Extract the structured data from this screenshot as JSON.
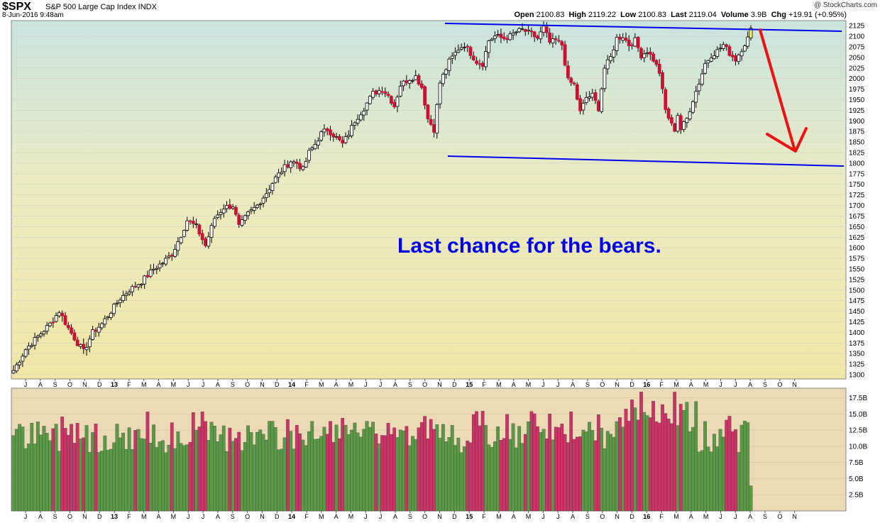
{
  "header": {
    "ticker": "$SPX",
    "description": "S&P 500 Large Cap Index INDX",
    "timestamp": "8-Jun-2016 9:48am",
    "brand": "@ StockCharts.com",
    "open_label": "Open",
    "open": "2100.83",
    "high_label": "High",
    "high": "2119.22",
    "low_label": "Low",
    "low": "2100.83",
    "last_label": "Last",
    "last": "2119.04",
    "volume_label": "Volume",
    "volume": "3.9B",
    "chg_label": "Chg",
    "chg": "+19.91 (+0.95%)"
  },
  "annotation": "Last chance for the bears.",
  "colors": {
    "up_candle": "#ffffff",
    "down_candle": "#cc1133",
    "wick": "#000000",
    "trendline": "#0000ee",
    "arrow": "#ee1111",
    "annotation_text": "#0000ee",
    "up_volume": "#5a9a46",
    "down_volume": "#cc3366",
    "volume_background": "#ecd9b6"
  },
  "chart_data": [
    {
      "type": "candlestick",
      "title": "$SPX S&P 500 Large Cap Index INDX",
      "period": "weekly",
      "x_tick_labels": [
        "J",
        "A",
        "S",
        "O",
        "N",
        "D",
        "13",
        "F",
        "M",
        "A",
        "M",
        "J",
        "J",
        "A",
        "S",
        "O",
        "N",
        "D",
        "14",
        "F",
        "M",
        "A",
        "M",
        "J",
        "J",
        "A",
        "S",
        "O",
        "N",
        "D",
        "15",
        "F",
        "M",
        "A",
        "M",
        "J",
        "J",
        "A",
        "S",
        "O",
        "N",
        "D",
        "16",
        "F",
        "M",
        "A",
        "M",
        "J",
        "J",
        "A",
        "S",
        "O",
        "N"
      ],
      "ylim": [
        1290,
        2137
      ],
      "y_ticks": [
        1300,
        1325,
        1350,
        1375,
        1400,
        1425,
        1450,
        1475,
        1500,
        1525,
        1550,
        1575,
        1600,
        1625,
        1650,
        1675,
        1700,
        1725,
        1750,
        1775,
        1800,
        1825,
        1850,
        1875,
        1900,
        1925,
        1950,
        1975,
        2000,
        2025,
        2050,
        2075,
        2100,
        2125
      ],
      "close_anchors": [
        [
          0,
          1310
        ],
        [
          4,
          1360
        ],
        [
          8,
          1390
        ],
        [
          12,
          1420
        ],
        [
          15,
          1450
        ],
        [
          18,
          1410
        ],
        [
          21,
          1375
        ],
        [
          23,
          1355
        ],
        [
          26,
          1400
        ],
        [
          29,
          1420
        ],
        [
          32,
          1450
        ],
        [
          35,
          1480
        ],
        [
          38,
          1500
        ],
        [
          42,
          1520
        ],
        [
          46,
          1550
        ],
        [
          49,
          1565
        ],
        [
          52,
          1585
        ],
        [
          55,
          1630
        ],
        [
          57,
          1665
        ],
        [
          60,
          1650
        ],
        [
          63,
          1605
        ],
        [
          66,
          1670
        ],
        [
          69,
          1695
        ],
        [
          72,
          1700
        ],
        [
          74,
          1650
        ],
        [
          77,
          1680
        ],
        [
          80,
          1700
        ],
        [
          83,
          1730
        ],
        [
          86,
          1765
        ],
        [
          89,
          1790
        ],
        [
          91,
          1805
        ],
        [
          93,
          1800
        ],
        [
          95,
          1785
        ],
        [
          97,
          1825
        ],
        [
          99,
          1845
        ],
        [
          101,
          1870
        ],
        [
          103,
          1880
        ],
        [
          106,
          1860
        ],
        [
          108,
          1845
        ],
        [
          110,
          1870
        ],
        [
          112,
          1900
        ],
        [
          115,
          1930
        ],
        [
          118,
          1965
        ],
        [
          121,
          1975
        ],
        [
          123,
          1960
        ],
        [
          125,
          1935
        ],
        [
          127,
          1985
        ],
        [
          130,
          2000
        ],
        [
          132,
          2005
        ],
        [
          134,
          1980
        ],
        [
          136,
          1905
        ],
        [
          138,
          1880
        ],
        [
          140,
          1990
        ],
        [
          143,
          2040
        ],
        [
          146,
          2070
        ],
        [
          148,
          2080
        ],
        [
          150,
          2060
        ],
        [
          152,
          2040
        ],
        [
          154,
          2035
        ],
        [
          156,
          2090
        ],
        [
          158,
          2100
        ],
        [
          161,
          2095
        ],
        [
          163,
          2100
        ],
        [
          165,
          2110
        ],
        [
          167,
          2115
        ],
        [
          170,
          2105
        ],
        [
          172,
          2095
        ],
        [
          174,
          2120
        ],
        [
          176,
          2085
        ],
        [
          178,
          2090
        ],
        [
          180,
          2080
        ],
        [
          182,
          1995
        ],
        [
          184,
          1985
        ],
        [
          186,
          1920
        ],
        [
          188,
          1955
        ],
        [
          190,
          1960
        ],
        [
          192,
          1930
        ],
        [
          194,
          2025
        ],
        [
          196,
          2050
        ],
        [
          198,
          2095
        ],
        [
          200,
          2100
        ],
        [
          202,
          2080
        ],
        [
          204,
          2090
        ],
        [
          206,
          2055
        ],
        [
          208,
          2065
        ],
        [
          210,
          2045
        ],
        [
          212,
          2015
        ],
        [
          214,
          1925
        ],
        [
          216,
          1890
        ],
        [
          217,
          1880
        ],
        [
          218,
          1915
        ],
        [
          219,
          1880
        ],
        [
          221,
          1905
        ],
        [
          223,
          1950
        ],
        [
          225,
          1990
        ],
        [
          227,
          2035
        ],
        [
          229,
          2055
        ],
        [
          231,
          2065
        ],
        [
          233,
          2080
        ],
        [
          235,
          2060
        ],
        [
          237,
          2045
        ],
        [
          239,
          2070
        ],
        [
          241,
          2095
        ],
        [
          242,
          2119
        ]
      ],
      "channel_upper": [
        [
          2016.5,
          2130
        ],
        [
          2017.5,
          2120
        ]
      ],
      "channel_lower": [
        [
          2016.5,
          1825
        ],
        [
          2017.5,
          1800
        ]
      ]
    },
    {
      "type": "bar",
      "title": "Volume",
      "ylim": [
        0,
        19
      ],
      "y_ticks": [
        "2.5B",
        "5.0B",
        "7.5B",
        "10.0B",
        "12.5B",
        "15.0B",
        "17.5B"
      ],
      "last_volume": "3.9B"
    }
  ]
}
